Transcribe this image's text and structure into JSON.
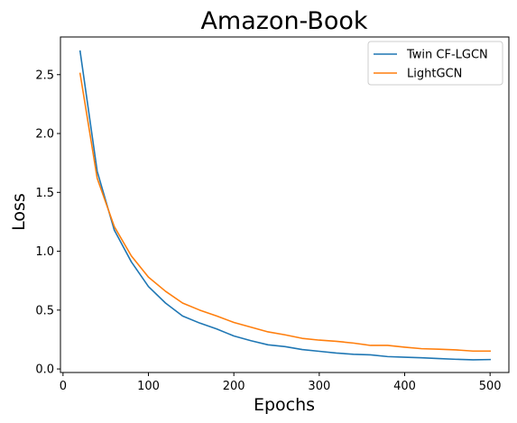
{
  "chart_data": {
    "type": "line",
    "title": "Amazon-Book",
    "xlabel": "Epochs",
    "ylabel": "Loss",
    "xlim": [
      -3,
      522
    ],
    "ylim": [
      -0.03,
      2.82
    ],
    "x_ticks": [
      0,
      100,
      200,
      300,
      400,
      500
    ],
    "x_tick_labels": [
      "0",
      "100",
      "200",
      "300",
      "400",
      "500"
    ],
    "y_ticks": [
      0.0,
      0.5,
      1.0,
      1.5,
      2.0,
      2.5
    ],
    "y_tick_labels": [
      "0.0",
      "0.5",
      "1.0",
      "1.5",
      "2.0",
      "2.5"
    ],
    "grid": false,
    "legend_position": "top-right",
    "x": [
      20,
      40,
      60,
      80,
      100,
      120,
      140,
      160,
      180,
      200,
      220,
      240,
      260,
      280,
      300,
      320,
      340,
      360,
      380,
      400,
      420,
      440,
      460,
      480,
      500
    ],
    "series": [
      {
        "name": "Twin CF-LGCN",
        "color": "#1f77b4",
        "values": [
          2.7,
          1.68,
          1.18,
          0.91,
          0.7,
          0.56,
          0.45,
          0.39,
          0.34,
          0.28,
          0.24,
          0.205,
          0.19,
          0.165,
          0.15,
          0.135,
          0.125,
          0.12,
          0.105,
          0.1,
          0.095,
          0.088,
          0.082,
          0.078,
          0.08
        ]
      },
      {
        "name": "LightGCN",
        "color": "#ff7f0e",
        "values": [
          2.51,
          1.62,
          1.21,
          0.96,
          0.78,
          0.66,
          0.56,
          0.5,
          0.45,
          0.395,
          0.355,
          0.315,
          0.29,
          0.26,
          0.245,
          0.235,
          0.22,
          0.2,
          0.2,
          0.185,
          0.172,
          0.168,
          0.162,
          0.152,
          0.152
        ]
      }
    ]
  }
}
